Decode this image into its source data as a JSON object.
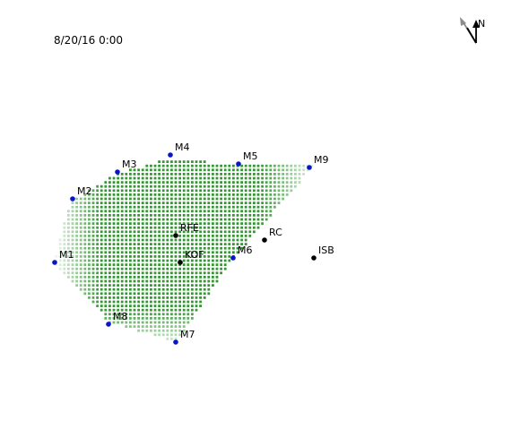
{
  "map": {
    "timestamp": "8/20/16 0:00",
    "north_label": "N",
    "colors": {
      "monitor_station": "#0a14c8",
      "site_station": "#000000",
      "plume": "#1e8c1e",
      "north_arrow_primary": "#000000",
      "north_arrow_wind": "#8c8c8c"
    },
    "monitors": [
      {
        "label": "M1"
      },
      {
        "label": "M2"
      },
      {
        "label": "M3"
      },
      {
        "label": "M4"
      },
      {
        "label": "M5"
      },
      {
        "label": "M6"
      },
      {
        "label": "M7"
      },
      {
        "label": "M8"
      },
      {
        "label": "M9"
      }
    ],
    "sites": [
      {
        "label": "RFE"
      },
      {
        "label": "KOF"
      },
      {
        "label": "RC"
      },
      {
        "label": "ISB"
      }
    ]
  }
}
